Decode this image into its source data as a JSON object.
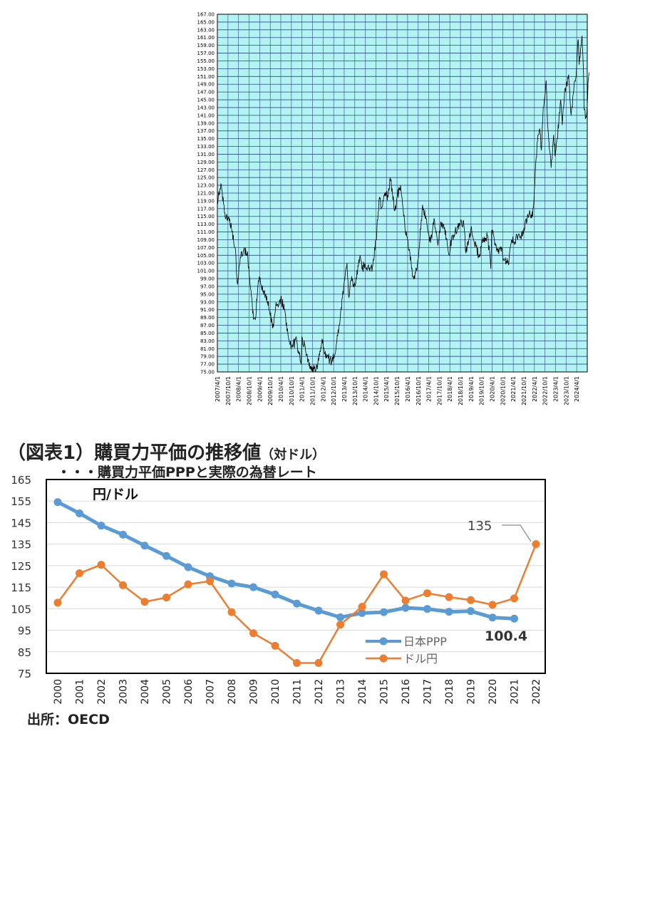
{
  "fx_chart": {
    "chart_data": {
      "type": "line",
      "series": [
        {
          "color": "#000000",
          "points": [
            [
              "2007/4/1",
              118.5
            ],
            [
              "2007/6/1",
              123.5
            ],
            [
              "2007/8/1",
              116
            ],
            [
              "2007/10/1",
              115
            ],
            [
              "2007/12/1",
              112
            ],
            [
              "2008/2/1",
              107
            ],
            [
              "2008/3/15",
              97.5
            ],
            [
              "2008/5/1",
              104.5
            ],
            [
              "2008/7/1",
              106.5
            ],
            [
              "2008/9/1",
              106
            ],
            [
              "2008/10/1",
              100
            ],
            [
              "2008/11/1",
              96
            ],
            [
              "2008/12/1",
              90
            ],
            [
              "2009/1/15",
              88.5
            ],
            [
              "2009/3/1",
              97
            ],
            [
              "2009/4/1",
              99
            ],
            [
              "2009/6/1",
              96
            ],
            [
              "2009/8/1",
              94.5
            ],
            [
              "2009/10/1",
              89.5
            ],
            [
              "2009/11/25",
              86.5
            ],
            [
              "2010/1/1",
              91.5
            ],
            [
              "2010/4/1",
              94
            ],
            [
              "2010/6/1",
              91
            ],
            [
              "2010/8/1",
              85
            ],
            [
              "2010/10/1",
              81.5
            ],
            [
              "2011/1/1",
              83
            ],
            [
              "2011/3/17",
              77
            ],
            [
              "2011/4/1",
              84
            ],
            [
              "2011/6/1",
              80.5
            ],
            [
              "2011/8/1",
              76.5
            ],
            [
              "2011/10/31",
              75.8
            ],
            [
              "2012/1/1",
              77
            ],
            [
              "2012/3/15",
              83.5
            ],
            [
              "2012/5/1",
              80
            ],
            [
              "2012/7/1",
              78.5
            ],
            [
              "2012/9/1",
              77.8
            ],
            [
              "2012/11/1",
              80
            ],
            [
              "2013/1/1",
              87
            ],
            [
              "2013/3/1",
              94
            ],
            [
              "2013/5/20",
              103
            ],
            [
              "2013/6/15",
              94.5
            ],
            [
              "2013/8/1",
              98.5
            ],
            [
              "2013/10/1",
              97.5
            ],
            [
              "2014/1/1",
              105
            ],
            [
              "2014/2/1",
              101.5
            ],
            [
              "2014/4/1",
              102.5
            ],
            [
              "2014/6/1",
              101.5
            ],
            [
              "2014/8/1",
              102
            ],
            [
              "2014/10/1",
              109
            ],
            [
              "2014/11/1",
              114
            ],
            [
              "2014/12/1",
              120
            ],
            [
              "2015/1/1",
              117
            ],
            [
              "2015/3/1",
              121
            ],
            [
              "2015/5/1",
              120
            ],
            [
              "2015/6/5",
              125
            ],
            [
              "2015/8/24",
              116.5
            ],
            [
              "2015/10/1",
              120
            ],
            [
              "2015/12/1",
              123
            ],
            [
              "2016/1/1",
              119
            ],
            [
              "2016/2/15",
              112
            ],
            [
              "2016/4/1",
              109
            ],
            [
              "2016/5/1",
              106.5
            ],
            [
              "2016/6/24",
              99.5
            ],
            [
              "2016/8/15",
              100.5
            ],
            [
              "2016/10/1",
              104
            ],
            [
              "2016/12/15",
              118
            ],
            [
              "2017/1/1",
              117
            ],
            [
              "2017/3/1",
              113
            ],
            [
              "2017/4/15",
              108.5
            ],
            [
              "2017/6/1",
              111
            ],
            [
              "2017/7/10",
              114
            ],
            [
              "2017/9/8",
              107.5
            ],
            [
              "2017/11/1",
              113.5
            ],
            [
              "2018/1/1",
              112
            ],
            [
              "2018/3/23",
              105
            ],
            [
              "2018/5/1",
              109.5
            ],
            [
              "2018/7/1",
              111
            ],
            [
              "2018/10/1",
              113.5
            ],
            [
              "2018/12/1",
              112.5
            ],
            [
              "2019/1/3",
              105.5
            ],
            [
              "2019/4/1",
              112
            ],
            [
              "2019/6/1",
              108
            ],
            [
              "2019/8/26",
              104.5
            ],
            [
              "2019/10/1",
              108
            ],
            [
              "2019/12/1",
              109.5
            ],
            [
              "2020/1/15",
              110
            ],
            [
              "2020/3/9",
              101.5
            ],
            [
              "2020/3/24",
              111.5
            ],
            [
              "2020/6/1",
              107.5
            ],
            [
              "2020/9/1",
              106
            ],
            [
              "2020/12/1",
              103.5
            ],
            [
              "2021/1/5",
              102.8
            ],
            [
              "2021/3/1",
              109
            ],
            [
              "2021/5/1",
              108.5
            ],
            [
              "2021/7/1",
              110.5
            ],
            [
              "2021/9/1",
              110
            ],
            [
              "2021/11/1",
              114
            ],
            [
              "2022/1/1",
              115.5
            ],
            [
              "2022/3/1",
              115
            ],
            [
              "2022/4/1",
              122
            ],
            [
              "2022/5/1",
              130
            ],
            [
              "2022/6/1",
              136
            ],
            [
              "2022/7/1",
              137.5
            ],
            [
              "2022/8/1",
              132
            ],
            [
              "2022/9/1",
              143
            ],
            [
              "2022/10/21",
              150
            ],
            [
              "2022/11/15",
              138.5
            ],
            [
              "2022/12/1",
              135.5
            ],
            [
              "2023/1/16",
              127.5
            ],
            [
              "2023/3/1",
              136
            ],
            [
              "2023/3/24",
              130.5
            ],
            [
              "2023/5/1",
              135
            ],
            [
              "2023/6/30",
              145
            ],
            [
              "2023/7/28",
              138.5
            ],
            [
              "2023/9/1",
              146
            ],
            [
              "2023/11/13",
              151.5
            ],
            [
              "2023/12/28",
              141
            ],
            [
              "2024/2/1",
              146.5
            ],
            [
              "2024/3/15",
              150.5
            ],
            [
              "2024/4/29",
              160.5
            ],
            [
              "2024/5/15",
              154
            ],
            [
              "2024/7/3",
              161.5
            ],
            [
              "2024/7/31",
              150
            ],
            [
              "2024/8/5",
              142.5
            ],
            [
              "2024/9/16",
              140.5
            ],
            [
              "2024/10/1",
              143.5
            ],
            [
              "2024/10/15",
              149.5
            ],
            [
              "2024/11/1",
              152
            ]
          ]
        }
      ],
      "x_ticks": [
        "2007/4/1",
        "2007/10/1",
        "2008/4/1",
        "2008/10/1",
        "2009/4/1",
        "2009/10/1",
        "2010/4/1",
        "2010/10/1",
        "2011/4/1",
        "2011/10/1",
        "2012/4/1",
        "2012/10/1",
        "2013/4/1",
        "2013/10/1",
        "2014/4/1",
        "2014/10/1",
        "2015/4/1",
        "2015/10/1",
        "2016/4/1",
        "2016/10/1",
        "2017/4/1",
        "2017/10/1",
        "2018/4/1",
        "2018/10/1",
        "2019/4/1",
        "2019/10/1",
        "2020/4/1",
        "2020/10/1",
        "2021/4/1",
        "2021/10/1",
        "2022/4/1",
        "2022/10/1",
        "2023/4/1",
        "2023/10/1",
        "2024/4/1"
      ],
      "x_range": [
        "2007/4/1",
        "2024/10/1"
      ],
      "y_ticks": [
        "75.00",
        "77.00",
        "79.00",
        "81.00",
        "83.00",
        "85.00",
        "87.00",
        "89.00",
        "91.00",
        "93.00",
        "95.00",
        "97.00",
        "99.00",
        "101.00",
        "103.00",
        "105.00",
        "107.00",
        "109.00",
        "111.00",
        "113.00",
        "115.00",
        "117.00",
        "119.00",
        "121.00",
        "123.00",
        "125.00",
        "127.00",
        "129.00",
        "131.00",
        "133.00",
        "135.00",
        "137.00",
        "139.00",
        "141.00",
        "143.00",
        "145.00",
        "147.00",
        "149.00",
        "151.00",
        "153.00",
        "155.00",
        "157.00",
        "159.00",
        "161.00",
        "163.00",
        "165.00",
        "167.00"
      ],
      "ylim": [
        75,
        167
      ],
      "grid": true,
      "background_color": "#b3f3f3",
      "grid_color": "#2a4a8a"
    }
  },
  "ppp_chart": {
    "heading_main": "（図表1）購買力平価の推移値",
    "heading_sub": "（対ドル）",
    "subheading": "・・・購買力平価PPPと実際の為替レート",
    "unit_label": "円/ドル",
    "source": "出所：OECD",
    "annotations": {
      "ppp_last": "100.4",
      "fx_last": "135"
    },
    "chart_data": {
      "type": "line",
      "categories": [
        "2000",
        "2001",
        "2002",
        "2003",
        "2004",
        "2005",
        "2006",
        "2007",
        "2008",
        "2009",
        "2010",
        "2011",
        "2012",
        "2013",
        "2014",
        "2015",
        "2016",
        "2017",
        "2018",
        "2019",
        "2020",
        "2021",
        "2022"
      ],
      "series": [
        {
          "name": "日本PPP",
          "color": "#5b9bd5",
          "values": [
            154.5,
            149.3,
            143.6,
            139.4,
            134.3,
            129.5,
            124.3,
            120.1,
            116.7,
            115.0,
            111.6,
            107.4,
            104.1,
            101.0,
            103.0,
            103.4,
            105.4,
            104.9,
            103.6,
            103.9,
            100.9,
            100.4,
            null
          ]
        },
        {
          "name": "ドル円",
          "color": "#ed7d31",
          "values": [
            107.8,
            121.5,
            125.4,
            115.9,
            108.2,
            110.2,
            116.3,
            117.8,
            103.4,
            93.6,
            87.8,
            79.8,
            79.8,
            97.6,
            105.9,
            121.0,
            108.8,
            112.2,
            110.4,
            109.0,
            106.8,
            109.8,
            135.0
          ]
        }
      ],
      "y_ticks": [
        75,
        85,
        95,
        105,
        115,
        125,
        135,
        145,
        155,
        165
      ],
      "ylim": [
        75,
        165
      ],
      "legend_position": "bottom-right",
      "grid": true
    }
  }
}
